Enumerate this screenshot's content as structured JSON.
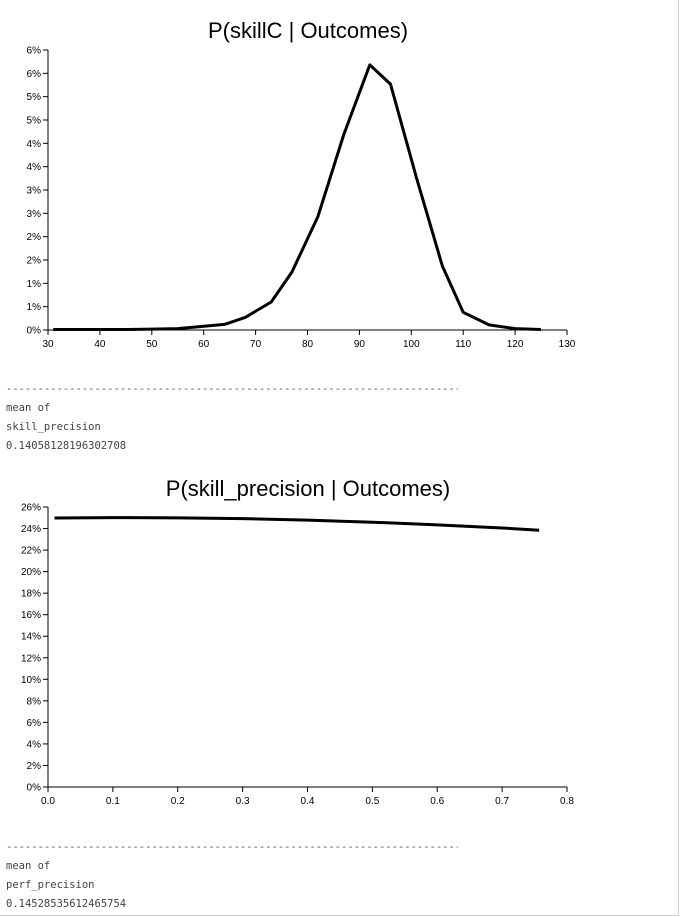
{
  "separator": "------------------------------------------------------------------------------------",
  "chart_data": [
    {
      "type": "line",
      "title": "P(skillC | Outcomes)",
      "xlabel": "",
      "ylabel": "",
      "xlim": [
        30,
        130
      ],
      "xticks": [
        30,
        40,
        50,
        60,
        70,
        80,
        90,
        100,
        110,
        120,
        130
      ],
      "ylim": [
        0,
        0.06
      ],
      "yticks": [
        {
          "v": 0.0,
          "label": "0%"
        },
        {
          "v": 0.005,
          "label": "1%"
        },
        {
          "v": 0.01,
          "label": "1%"
        },
        {
          "v": 0.015,
          "label": "2%"
        },
        {
          "v": 0.02,
          "label": "2%"
        },
        {
          "v": 0.025,
          "label": "3%"
        },
        {
          "v": 0.03,
          "label": "3%"
        },
        {
          "v": 0.035,
          "label": "4%"
        },
        {
          "v": 0.04,
          "label": "4%"
        },
        {
          "v": 0.045,
          "label": "5%"
        },
        {
          "v": 0.05,
          "label": "5%"
        },
        {
          "v": 0.055,
          "label": "6%"
        },
        {
          "v": 0.06,
          "label": "6%"
        }
      ],
      "grid": false,
      "series": [
        {
          "x": [
            31,
            36,
            41,
            45,
            50,
            55,
            59,
            64,
            68,
            73,
            77,
            82,
            87,
            92,
            96,
            101,
            106,
            110,
            115,
            120,
            125
          ],
          "values": [
            0.0001,
            0.0001,
            0.0001,
            0.0001,
            0.0002,
            0.0003,
            0.0007,
            0.0012,
            0.0027,
            0.006,
            0.0124,
            0.0243,
            0.0419,
            0.0568,
            0.0527,
            0.0326,
            0.0137,
            0.0038,
            0.0011,
            0.0003,
            0.0001
          ]
        }
      ]
    },
    {
      "type": "line",
      "title": "P(skill_precision | Outcomes)",
      "xlabel": "",
      "ylabel": "",
      "xlim": [
        0,
        0.8
      ],
      "xticks": [
        {
          "v": 0.0,
          "label": "0.0"
        },
        {
          "v": 0.1,
          "label": "0.1"
        },
        {
          "v": 0.2,
          "label": "0.2"
        },
        {
          "v": 0.3,
          "label": "0.3"
        },
        {
          "v": 0.4,
          "label": "0.4"
        },
        {
          "v": 0.5,
          "label": "0.5"
        },
        {
          "v": 0.6,
          "label": "0.6"
        },
        {
          "v": 0.7,
          "label": "0.7"
        },
        {
          "v": 0.8,
          "label": "0.8"
        }
      ],
      "ylim": [
        0,
        0.26
      ],
      "yticks": [
        {
          "v": 0.0,
          "label": "0%"
        },
        {
          "v": 0.02,
          "label": "2%"
        },
        {
          "v": 0.04,
          "label": "4%"
        },
        {
          "v": 0.06,
          "label": "6%"
        },
        {
          "v": 0.08,
          "label": "8%"
        },
        {
          "v": 0.1,
          "label": "10%"
        },
        {
          "v": 0.12,
          "label": "12%"
        },
        {
          "v": 0.14,
          "label": "14%"
        },
        {
          "v": 0.16,
          "label": "16%"
        },
        {
          "v": 0.18,
          "label": "18%"
        },
        {
          "v": 0.2,
          "label": "20%"
        },
        {
          "v": 0.22,
          "label": "22%"
        },
        {
          "v": 0.24,
          "label": "24%"
        },
        {
          "v": 0.26,
          "label": "26%"
        }
      ],
      "grid": false,
      "series": [
        {
          "x": [
            0.01,
            0.1,
            0.2,
            0.3,
            0.4,
            0.5,
            0.6,
            0.7,
            0.757
          ],
          "values": [
            0.2498,
            0.2502,
            0.2499,
            0.2492,
            0.2478,
            0.2459,
            0.2434,
            0.2405,
            0.2385
          ]
        }
      ]
    }
  ],
  "readouts": [
    {
      "label1": "mean of",
      "label2": "skill_precision",
      "value": "0.14058128196302708"
    },
    {
      "label1": "mean of",
      "label2": "perf_precision",
      "value": "0.14528535612465754"
    }
  ]
}
